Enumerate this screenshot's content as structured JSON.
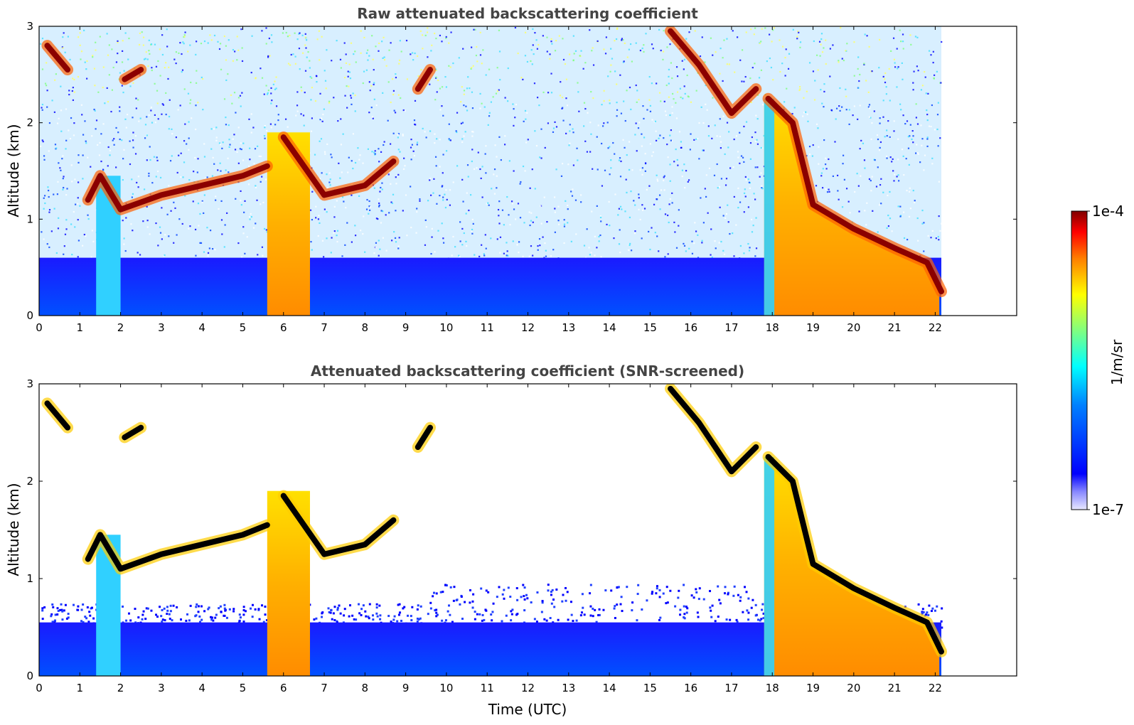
{
  "chart_data": [
    {
      "type": "heatmap",
      "title": "Raw attenuated backscattering coefficient",
      "ylabel": "Altitude (km)",
      "xlabel": "",
      "xlim": [
        0,
        24.0
      ],
      "ylim": [
        0,
        3
      ],
      "x_ticks": [
        0,
        1,
        2,
        3,
        4,
        5,
        6,
        7,
        8,
        9,
        10,
        11,
        12,
        13,
        14,
        15,
        16,
        17,
        18,
        19,
        20,
        21,
        22
      ],
      "y_ticks": [
        0,
        1,
        2,
        3
      ],
      "data_end_time": 22.15,
      "screened": false,
      "features": [
        {
          "name": "cloud layer",
          "points": [
            [
              1.2,
              1.2
            ],
            [
              1.5,
              1.45
            ],
            [
              2.0,
              1.1
            ],
            [
              3.0,
              1.25
            ],
            [
              4.0,
              1.35
            ],
            [
              5.0,
              1.45
            ],
            [
              5.6,
              1.55
            ]
          ]
        },
        {
          "name": "cloud layer",
          "points": [
            [
              6.0,
              1.85
            ],
            [
              6.5,
              1.55
            ],
            [
              7.0,
              1.25
            ],
            [
              8.0,
              1.35
            ],
            [
              8.7,
              1.6
            ]
          ]
        },
        {
          "name": "cloud layer",
          "points": [
            [
              17.9,
              2.25
            ],
            [
              18.5,
              2.0
            ],
            [
              19.0,
              1.15
            ],
            [
              20.0,
              0.9
            ],
            [
              21.0,
              0.7
            ],
            [
              21.8,
              0.55
            ],
            [
              22.15,
              0.25
            ]
          ]
        },
        {
          "name": "high cloud",
          "points": [
            [
              0.2,
              2.8
            ],
            [
              0.7,
              2.55
            ]
          ]
        },
        {
          "name": "high cloud",
          "points": [
            [
              2.1,
              2.45
            ],
            [
              2.5,
              2.55
            ]
          ]
        },
        {
          "name": "high cloud",
          "points": [
            [
              9.3,
              2.35
            ],
            [
              9.6,
              2.55
            ]
          ]
        },
        {
          "name": "high cloud",
          "points": [
            [
              15.5,
              2.95
            ],
            [
              16.2,
              2.6
            ],
            [
              17.0,
              2.1
            ],
            [
              17.6,
              2.35
            ]
          ]
        }
      ]
    },
    {
      "type": "heatmap",
      "title": "Attenuated backscattering coefficient (SNR-screened)",
      "ylabel": "Altitude (km)",
      "xlabel": "Time (UTC)",
      "xlim": [
        0,
        24.0
      ],
      "ylim": [
        0,
        3
      ],
      "x_ticks": [
        0,
        1,
        2,
        3,
        4,
        5,
        6,
        7,
        8,
        9,
        10,
        11,
        12,
        13,
        14,
        15,
        16,
        17,
        18,
        19,
        20,
        21,
        22
      ],
      "y_ticks": [
        0,
        1,
        2,
        3
      ],
      "data_end_time": 22.15,
      "screened": true
    }
  ],
  "colorbar": {
    "label": "1/m/sr",
    "max_label": "1e-4",
    "min_label": "1e-7",
    "scale": "log",
    "colormap": "jet",
    "stops": [
      "#e8e8ff",
      "#0000ff",
      "#0080ff",
      "#00ffff",
      "#80ff80",
      "#ffff00",
      "#ff8000",
      "#ff0000",
      "#800000"
    ]
  }
}
